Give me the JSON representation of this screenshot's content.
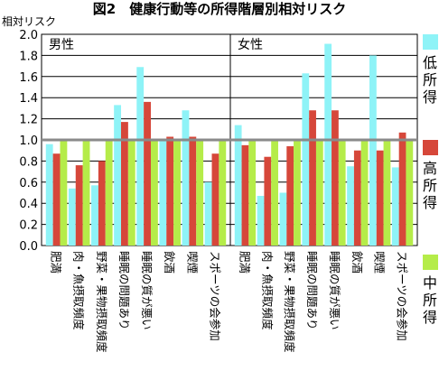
{
  "chart_data": {
    "type": "bar",
    "title": "図2　健康行動等の所得階層別相対リスク",
    "ylabel": "相対リスク",
    "ylim": [
      0,
      2.0
    ],
    "yticks": [
      "0.0",
      "0.2",
      "0.4",
      "0.6",
      "0.8",
      "1.0",
      "1.2",
      "1.4",
      "1.6",
      "1.8",
      "2.0"
    ],
    "grid": true,
    "legend_position": "right",
    "categories": [
      "肥満",
      "肉・魚摂取頻度",
      "野菜・果物摂取頻度",
      "睡眠の問題あり",
      "睡眠の質が悪い",
      "飲酒",
      "喫煙",
      "スポーツの会参加"
    ],
    "colors": {
      "低所得": "#8ef3f7",
      "高所得": "#d6473a",
      "中所得": "#b5ec49"
    },
    "panels": [
      {
        "label": "男性",
        "series": [
          {
            "name": "低所得",
            "values": [
              0.96,
              0.54,
              0.57,
              1.33,
              1.69,
              1.0,
              1.28,
              0.6
            ]
          },
          {
            "name": "高所得",
            "values": [
              0.87,
              0.76,
              0.8,
              1.17,
              1.36,
              1.03,
              1.03,
              0.87
            ]
          },
          {
            "name": "中所得",
            "values": [
              1.0,
              1.0,
              1.0,
              1.0,
              1.0,
              1.0,
              1.0,
              1.0
            ]
          }
        ]
      },
      {
        "label": "女性",
        "series": [
          {
            "name": "低所得",
            "values": [
              1.14,
              0.47,
              0.5,
              1.63,
              1.91,
              0.75,
              1.8,
              0.74
            ]
          },
          {
            "name": "高所得",
            "values": [
              0.95,
              0.84,
              0.94,
              1.28,
              1.28,
              0.9,
              0.9,
              1.07
            ]
          },
          {
            "name": "中所得",
            "values": [
              1.0,
              1.0,
              1.0,
              1.0,
              1.0,
              1.0,
              1.0,
              1.0
            ]
          }
        ]
      }
    ],
    "reference_line": 1.0
  }
}
